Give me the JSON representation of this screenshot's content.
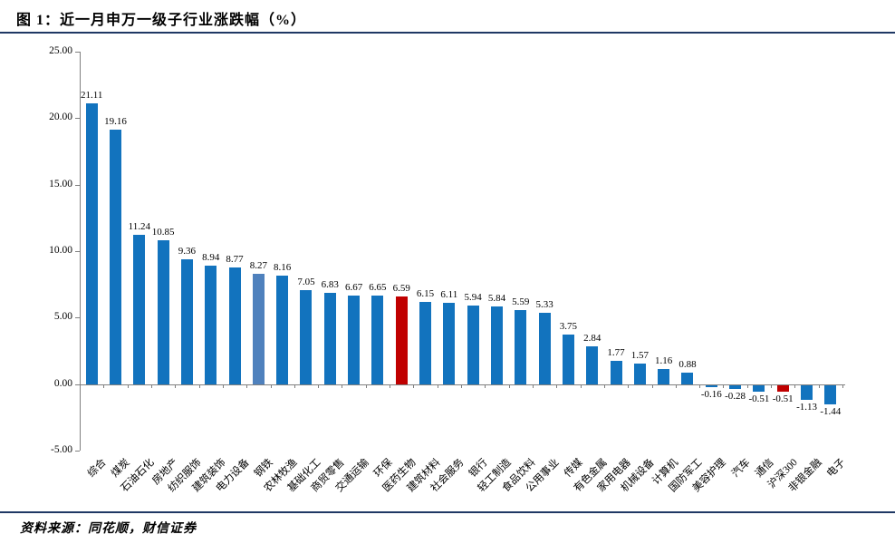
{
  "header": {
    "title": "图 1：近一月申万一级子行业涨跌幅（%）"
  },
  "footer": {
    "source": "资料来源：同花顺，财信证券"
  },
  "colors": {
    "bar_default": "#1273BE",
    "bar_steel_highlight": "#4F81BD",
    "bar_red_highlight": "#C00000",
    "axis": "#7F7F7F",
    "rule": "#1F3864",
    "text": "#000000"
  },
  "chart_data": {
    "type": "bar",
    "title": "近一月申万一级子行业涨跌幅（%）",
    "categories": [
      "综合",
      "煤炭",
      "石油石化",
      "房地产",
      "纺织服饰",
      "建筑装饰",
      "电力设备",
      "钢铁",
      "农林牧渔",
      "基础化工",
      "商贸零售",
      "交通运输",
      "环保",
      "医药生物",
      "建筑材料",
      "社会服务",
      "银行",
      "轻工制造",
      "食品饮料",
      "公用事业",
      "传媒",
      "有色金属",
      "家用电器",
      "机械设备",
      "计算机",
      "国防军工",
      "美容护理",
      "汽车",
      "通信",
      "沪深300",
      "非银金融",
      "电子"
    ],
    "values": [
      21.11,
      19.16,
      11.24,
      10.85,
      9.36,
      8.94,
      8.77,
      8.27,
      8.16,
      7.05,
      6.83,
      6.67,
      6.65,
      6.59,
      6.15,
      6.11,
      5.94,
      5.84,
      5.59,
      5.33,
      3.75,
      2.84,
      1.77,
      1.57,
      1.16,
      0.88,
      -0.16,
      -0.28,
      -0.51,
      -0.51,
      -1.13,
      -1.44
    ],
    "bar_colors": [
      "#1273BE",
      "#1273BE",
      "#1273BE",
      "#1273BE",
      "#1273BE",
      "#1273BE",
      "#1273BE",
      "#4F81BD",
      "#1273BE",
      "#1273BE",
      "#1273BE",
      "#1273BE",
      "#1273BE",
      "#C00000",
      "#1273BE",
      "#1273BE",
      "#1273BE",
      "#1273BE",
      "#1273BE",
      "#1273BE",
      "#1273BE",
      "#1273BE",
      "#1273BE",
      "#1273BE",
      "#1273BE",
      "#1273BE",
      "#1273BE",
      "#1273BE",
      "#1273BE",
      "#C00000",
      "#1273BE",
      "#1273BE"
    ],
    "xlabel": "",
    "ylabel": "",
    "ylim": [
      -5,
      25
    ],
    "y_tick_step": 5,
    "y_tick_labels": [
      "25.00",
      "20.00",
      "15.00",
      "10.00",
      "5.00",
      "0.00",
      "-5.00"
    ],
    "value_label_decimals": 2,
    "grid": false,
    "legend": false
  }
}
